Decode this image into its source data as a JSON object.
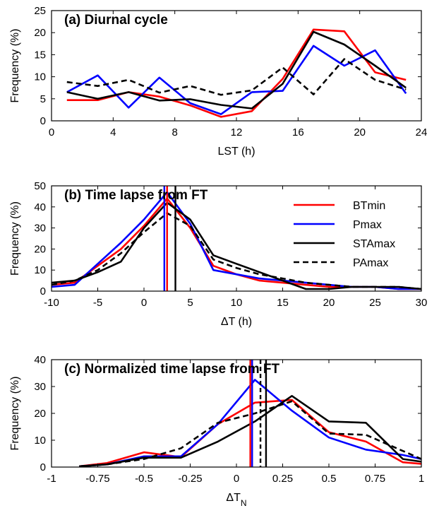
{
  "chart_data": [
    {
      "type": "line",
      "title": "(a) Diurnal cycle",
      "xlabel": "LST (h)",
      "ylabel": "Frequency (%)",
      "xlim": [
        0,
        24
      ],
      "ylim": [
        0,
        25
      ],
      "xticks": [
        0,
        4,
        8,
        12,
        16,
        20,
        24
      ],
      "xtick_labels": [
        "0",
        "4",
        "8",
        "12",
        "16",
        "20",
        "24"
      ],
      "yticks": [
        0,
        5,
        10,
        15,
        20,
        25
      ],
      "ytick_labels": [
        "0",
        "5",
        "10",
        "15",
        "20",
        "25"
      ],
      "series": [
        {
          "name": "BTmin",
          "color": "#ff0000",
          "dash": "solid",
          "x": [
            1,
            3,
            5,
            7,
            9,
            11,
            13,
            15,
            17,
            19,
            21,
            23
          ],
          "y": [
            4.7,
            4.7,
            6.5,
            5.5,
            3.5,
            0.9,
            2.2,
            9.5,
            20.7,
            20.3,
            11.0,
            9.3
          ]
        },
        {
          "name": "Pmax",
          "color": "#0000ff",
          "dash": "solid",
          "x": [
            1,
            3,
            5,
            7,
            9,
            11,
            13,
            15,
            17,
            19,
            21,
            23
          ],
          "y": [
            6.5,
            10.3,
            3.0,
            9.8,
            4.0,
            1.5,
            6.5,
            6.8,
            17.0,
            12.5,
            16.0,
            6.2
          ]
        },
        {
          "name": "STAmax",
          "color": "#000000",
          "dash": "solid",
          "x": [
            1,
            3,
            5,
            7,
            9,
            11,
            13,
            15,
            17,
            19,
            21,
            23
          ],
          "y": [
            6.5,
            5.0,
            6.5,
            4.6,
            4.9,
            3.6,
            2.8,
            8.4,
            20.2,
            17.3,
            12.5,
            7.5
          ]
        },
        {
          "name": "PAmax",
          "color": "#000000",
          "dash": "dashed",
          "x": [
            1,
            3,
            5,
            7,
            9,
            11,
            13,
            15,
            17,
            19,
            21,
            23
          ],
          "y": [
            8.8,
            7.9,
            9.3,
            6.4,
            7.9,
            5.9,
            6.9,
            12.1,
            6.0,
            14.0,
            9.3,
            7.1
          ]
        }
      ],
      "vlines": []
    },
    {
      "type": "line",
      "title": "(b) Time lapse from FT",
      "xlabel": "ΔT (h)",
      "ylabel": "Frequency (%)",
      "xlim": [
        -10,
        30
      ],
      "ylim": [
        0,
        50
      ],
      "xticks": [
        -10,
        -5,
        0,
        5,
        10,
        15,
        20,
        25,
        30
      ],
      "xtick_labels": [
        "-10",
        "-5",
        "0",
        "5",
        "10",
        "15",
        "20",
        "25",
        "30"
      ],
      "yticks": [
        0,
        10,
        20,
        30,
        40,
        50
      ],
      "ytick_labels": [
        "0",
        "10",
        "20",
        "30",
        "40",
        "50"
      ],
      "legend": {
        "placement": "top-right",
        "entries": [
          {
            "label": "BTmin",
            "color": "#ff0000",
            "dash": "solid"
          },
          {
            "label": "Pmax",
            "color": "#0000ff",
            "dash": "solid"
          },
          {
            "label": "STAmax",
            "color": "#000000",
            "dash": "solid"
          },
          {
            "label": "PAmax",
            "color": "#000000",
            "dash": "dashed"
          }
        ]
      },
      "series": [
        {
          "name": "BTmin",
          "color": "#ff0000",
          "dash": "solid",
          "x": [
            -10,
            -7.5,
            -5,
            -2.5,
            0,
            2.5,
            5,
            7.5,
            10,
            12.5,
            15,
            17.5,
            20,
            22.5,
            25,
            27.5,
            30
          ],
          "y": [
            3,
            4,
            12,
            20,
            31,
            44,
            30,
            12,
            8,
            5,
            4,
            3,
            2,
            2,
            2,
            1,
            1
          ]
        },
        {
          "name": "Pmax",
          "color": "#0000ff",
          "dash": "solid",
          "x": [
            -10,
            -7.5,
            -5,
            -2.5,
            0,
            2.5,
            5,
            7.5,
            10,
            12.5,
            15,
            17.5,
            20,
            22.5,
            25,
            27.5,
            30
          ],
          "y": [
            2,
            3,
            13,
            23,
            34,
            47,
            32,
            10,
            8,
            6,
            5,
            4,
            3,
            2,
            2,
            1,
            1
          ]
        },
        {
          "name": "STAmax",
          "color": "#000000",
          "dash": "solid",
          "x": [
            -10,
            -7.5,
            -5,
            -2.5,
            0,
            2.5,
            5,
            7.5,
            10,
            12.5,
            15,
            17.5,
            20,
            22.5,
            25,
            27.5,
            30
          ],
          "y": [
            4,
            5,
            9,
            14,
            30,
            42,
            34,
            17,
            13,
            9,
            5,
            1,
            1,
            2,
            2,
            2,
            1
          ]
        },
        {
          "name": "PAmax",
          "color": "#000000",
          "dash": "dashed",
          "x": [
            -10,
            -7.5,
            -5,
            -2.5,
            0,
            2.5,
            5,
            7.5,
            10,
            12.5,
            15,
            17.5,
            20,
            22.5,
            25,
            27.5,
            30
          ],
          "y": [
            3,
            5,
            10,
            18,
            28,
            37,
            31,
            15,
            11,
            8,
            6,
            4,
            3,
            2,
            2,
            2,
            1
          ]
        }
      ],
      "vlines": [
        {
          "x": 2.2,
          "color": "#0000ff"
        },
        {
          "x": 2.5,
          "color": "#ff0000"
        },
        {
          "x": 3.4,
          "color": "#000000"
        }
      ]
    },
    {
      "type": "line",
      "title": "(c) Normalized time lapse from FT",
      "xlabel": "ΔT",
      "xlabel_sub": "N",
      "ylabel": "Frequency (%)",
      "xlim": [
        -1,
        1
      ],
      "ylim": [
        0,
        40
      ],
      "xticks": [
        -1,
        -0.75,
        -0.5,
        -0.25,
        0,
        0.25,
        0.5,
        0.75,
        1
      ],
      "xtick_labels": [
        "-1",
        "-0.75",
        "-0.5",
        "-0.25",
        "0",
        "0.25",
        "0.5",
        "0.75",
        "1"
      ],
      "yticks": [
        0,
        10,
        20,
        30,
        40
      ],
      "ytick_labels": [
        "0",
        "10",
        "20",
        "30",
        "40"
      ],
      "series": [
        {
          "name": "BTmin",
          "color": "#ff0000",
          "dash": "solid",
          "x": [
            -0.85,
            -0.7,
            -0.5,
            -0.3,
            -0.1,
            0.1,
            0.3,
            0.5,
            0.7,
            0.9,
            1.0
          ],
          "y": [
            0.3,
            1.5,
            5.5,
            3.7,
            16,
            24,
            25,
            13,
            9.5,
            1.8,
            1.2
          ]
        },
        {
          "name": "Pmax",
          "color": "#0000ff",
          "dash": "solid",
          "x": [
            -0.85,
            -0.7,
            -0.5,
            -0.3,
            -0.1,
            0.1,
            0.3,
            0.5,
            0.7,
            0.9,
            1.0
          ],
          "y": [
            0.3,
            1.0,
            4.0,
            4.0,
            16,
            32.5,
            21,
            11,
            6.5,
            4.5,
            3.0
          ]
        },
        {
          "name": "STAmax",
          "color": "#000000",
          "dash": "solid",
          "x": [
            -0.85,
            -0.7,
            -0.5,
            -0.3,
            -0.1,
            0.1,
            0.3,
            0.5,
            0.7,
            0.9,
            1.0
          ],
          "y": [
            0.3,
            1.0,
            3.5,
            3.5,
            9.5,
            17,
            26.5,
            17,
            16.5,
            3.0,
            2.0
          ]
        },
        {
          "name": "PAmax",
          "color": "#000000",
          "dash": "dashed",
          "x": [
            -0.85,
            -0.7,
            -0.5,
            -0.3,
            -0.1,
            0.1,
            0.3,
            0.5,
            0.7,
            0.9,
            1.0
          ],
          "y": [
            0.3,
            1.0,
            3.0,
            7.0,
            16.5,
            20,
            24.5,
            12.5,
            12.0,
            6.0,
            3.0
          ]
        }
      ],
      "vlines": [
        {
          "x": 0.075,
          "color": "#ff0000"
        },
        {
          "x": 0.085,
          "color": "#0000ff"
        },
        {
          "x": 0.13,
          "color": "#000000",
          "dash": "dashed"
        },
        {
          "x": 0.16,
          "color": "#000000"
        }
      ]
    }
  ]
}
